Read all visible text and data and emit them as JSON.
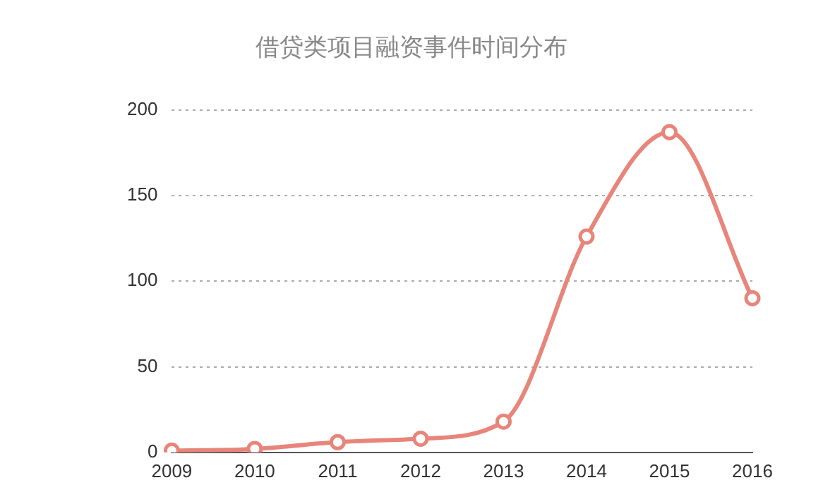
{
  "chart_data": {
    "type": "line",
    "title": "借贷类项目融资事件时间分布",
    "categories": [
      "2009",
      "2010",
      "2011",
      "2012",
      "2013",
      "2014",
      "2015",
      "2016"
    ],
    "series": [
      {
        "color": "#e8857a",
        "values": [
          1,
          2,
          6,
          8,
          18,
          126,
          187,
          90
        ]
      }
    ],
    "ylim": [
      0,
      200
    ],
    "yticks": [
      0,
      50,
      100,
      150,
      200
    ],
    "grid": "y",
    "marker": "circle",
    "legend": false
  }
}
